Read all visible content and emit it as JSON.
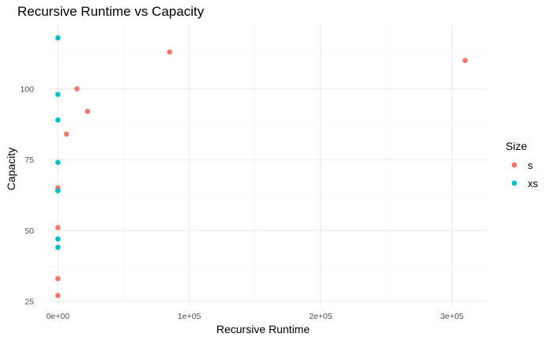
{
  "chart_data": {
    "type": "scatter",
    "title": "Recursive Runtime vs Capacity",
    "xlabel": "Recursive Runtime",
    "ylabel": "Capacity",
    "xlim": [
      -8000,
      327000
    ],
    "ylim": [
      23.5,
      123
    ],
    "x_ticks": [
      0,
      100000,
      200000,
      300000
    ],
    "x_tick_labels": [
      "0e+00",
      "1e+05",
      "2e+05",
      "3e+05"
    ],
    "y_ticks": [
      25,
      50,
      75,
      100
    ],
    "y_tick_labels": [
      "25",
      "50",
      "75",
      "100"
    ],
    "grid": true,
    "legend": {
      "title": "Size",
      "position": "right"
    },
    "series": [
      {
        "name": "s",
        "color": "#F8766D",
        "points": [
          {
            "x": 85000,
            "y": 113
          },
          {
            "x": 310000,
            "y": 110
          },
          {
            "x": 14500,
            "y": 100
          },
          {
            "x": 22500,
            "y": 92
          },
          {
            "x": 6500,
            "y": 84
          },
          {
            "x": 0,
            "y": 65
          },
          {
            "x": 0,
            "y": 51
          },
          {
            "x": 0,
            "y": 33
          },
          {
            "x": 0,
            "y": 27
          }
        ]
      },
      {
        "name": "xs",
        "color": "#00BFC4",
        "points": [
          {
            "x": 0,
            "y": 118
          },
          {
            "x": 0,
            "y": 98
          },
          {
            "x": 0,
            "y": 89
          },
          {
            "x": 0,
            "y": 74
          },
          {
            "x": 0,
            "y": 64
          },
          {
            "x": 0,
            "y": 47
          },
          {
            "x": 0,
            "y": 44
          }
        ]
      }
    ]
  }
}
